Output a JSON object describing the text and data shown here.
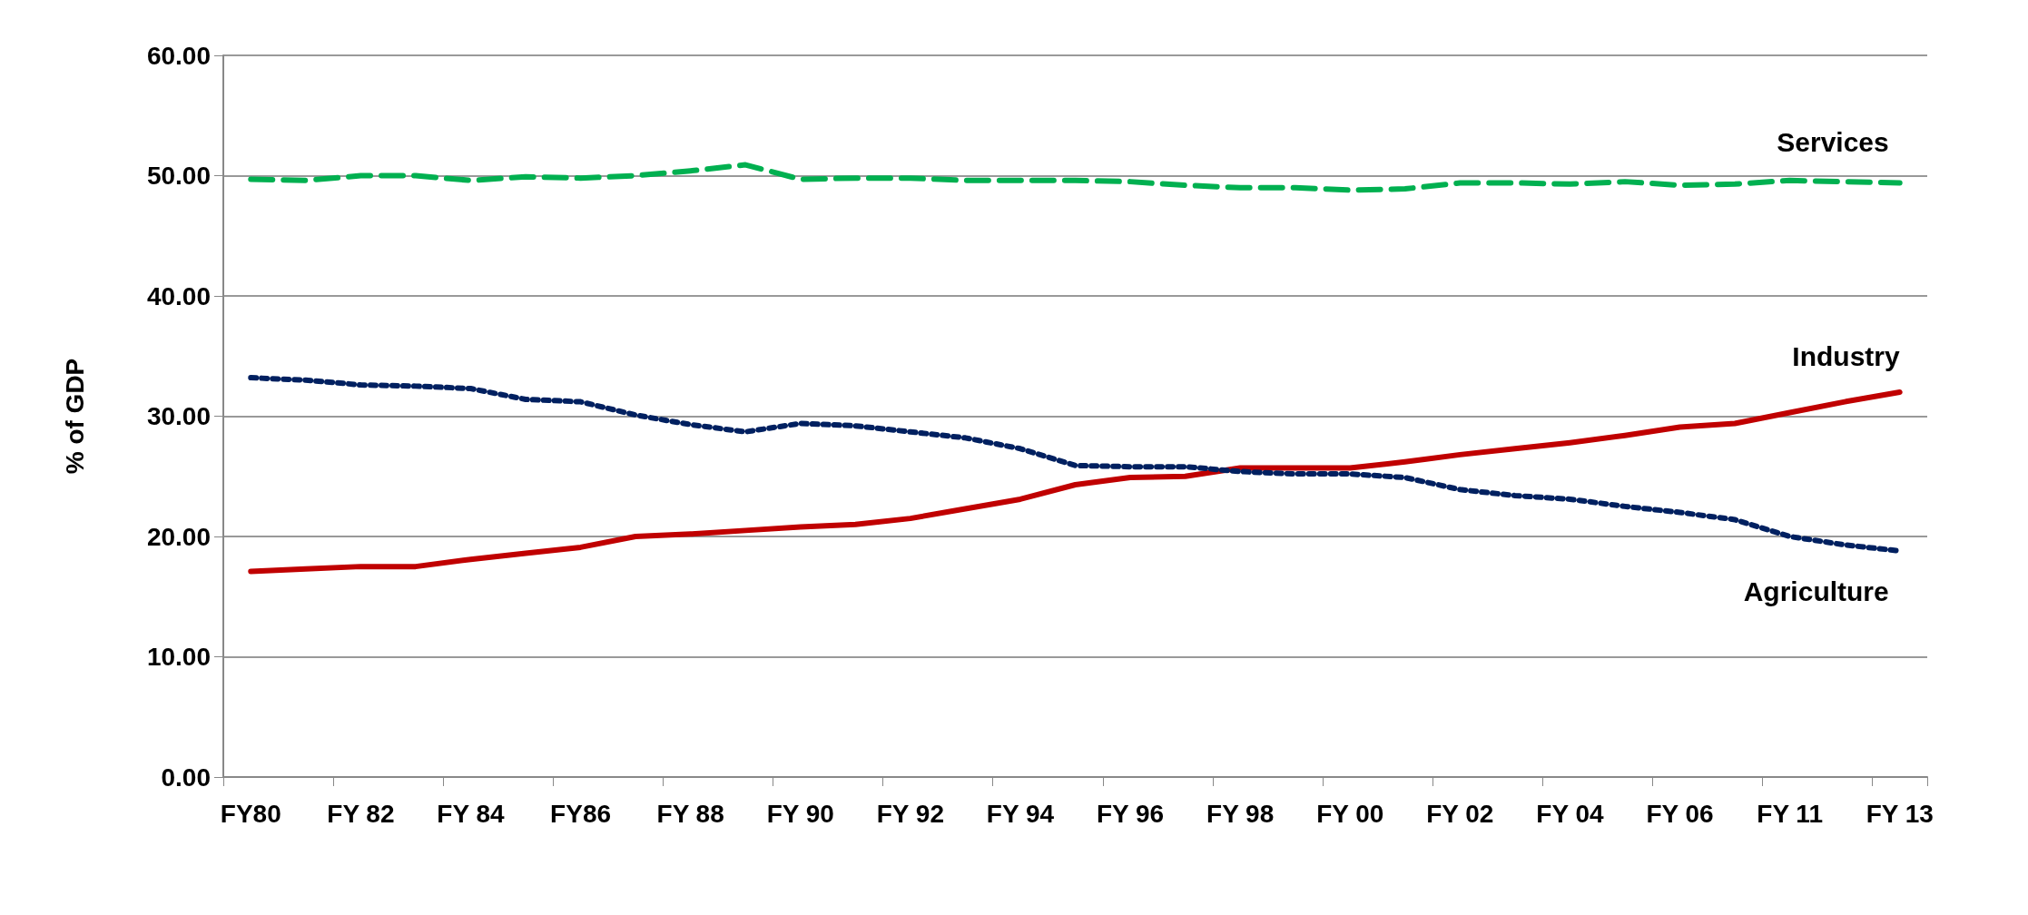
{
  "chart_data": {
    "type": "line",
    "ylabel": "% of GDP",
    "categories": [
      "FY80",
      null,
      "FY 82",
      null,
      "FY 84",
      null,
      "FY86",
      null,
      "FY 88",
      null,
      "FY 90",
      null,
      "FY 92",
      null,
      "FY 94",
      null,
      "FY 96",
      null,
      "FY 98",
      null,
      "FY 00",
      null,
      "FY 02",
      null,
      "FY 04",
      null,
      "FY 06",
      null,
      "FY 11",
      null,
      "FY 13"
    ],
    "series": [
      {
        "name": "Services",
        "color": "#00b050",
        "line_style": "dashed",
        "values": [
          49.7,
          49.6,
          50.0,
          50.0,
          49.6,
          49.9,
          49.8,
          50.0,
          50.4,
          50.9,
          49.7,
          49.8,
          49.8,
          49.6,
          49.6,
          49.6,
          49.5,
          49.2,
          49.0,
          49.0,
          48.8,
          48.9,
          49.4,
          49.4,
          49.3,
          49.5,
          49.2,
          49.3,
          49.6,
          49.5,
          49.4
        ]
      },
      {
        "name": "Industry",
        "color": "#c00000",
        "line_style": "solid",
        "values": [
          17.1,
          17.3,
          17.5,
          17.5,
          18.1,
          18.6,
          19.1,
          20.0,
          20.2,
          20.5,
          20.8,
          21.0,
          21.5,
          22.3,
          23.1,
          24.3,
          24.9,
          25.0,
          25.7,
          25.7,
          25.7,
          26.2,
          26.8,
          27.3,
          27.8,
          28.4,
          29.1,
          29.4,
          30.3,
          31.2,
          32.0
        ]
      },
      {
        "name": "Agriculture",
        "color": "#002060",
        "line_style": "dotted",
        "values": [
          33.2,
          33.0,
          32.6,
          32.5,
          32.3,
          31.4,
          31.2,
          30.1,
          29.3,
          28.7,
          29.4,
          29.2,
          28.7,
          28.2,
          27.3,
          25.9,
          25.8,
          25.8,
          25.4,
          25.2,
          25.2,
          24.9,
          23.9,
          23.4,
          23.1,
          22.5,
          22.0,
          21.4,
          20.0,
          19.3,
          18.8
        ]
      }
    ],
    "ylim": [
      0,
      60
    ],
    "yticks": [
      {
        "value": 0,
        "label": "0.00"
      },
      {
        "value": 10,
        "label": "10.00"
      },
      {
        "value": 20,
        "label": "20.00"
      },
      {
        "value": 30,
        "label": "30.00"
      },
      {
        "value": 40,
        "label": "40.00"
      },
      {
        "value": 50,
        "label": "50.00"
      },
      {
        "value": 60,
        "label": "60.00"
      }
    ],
    "grid": "y",
    "legend": false,
    "marker": "none"
  }
}
